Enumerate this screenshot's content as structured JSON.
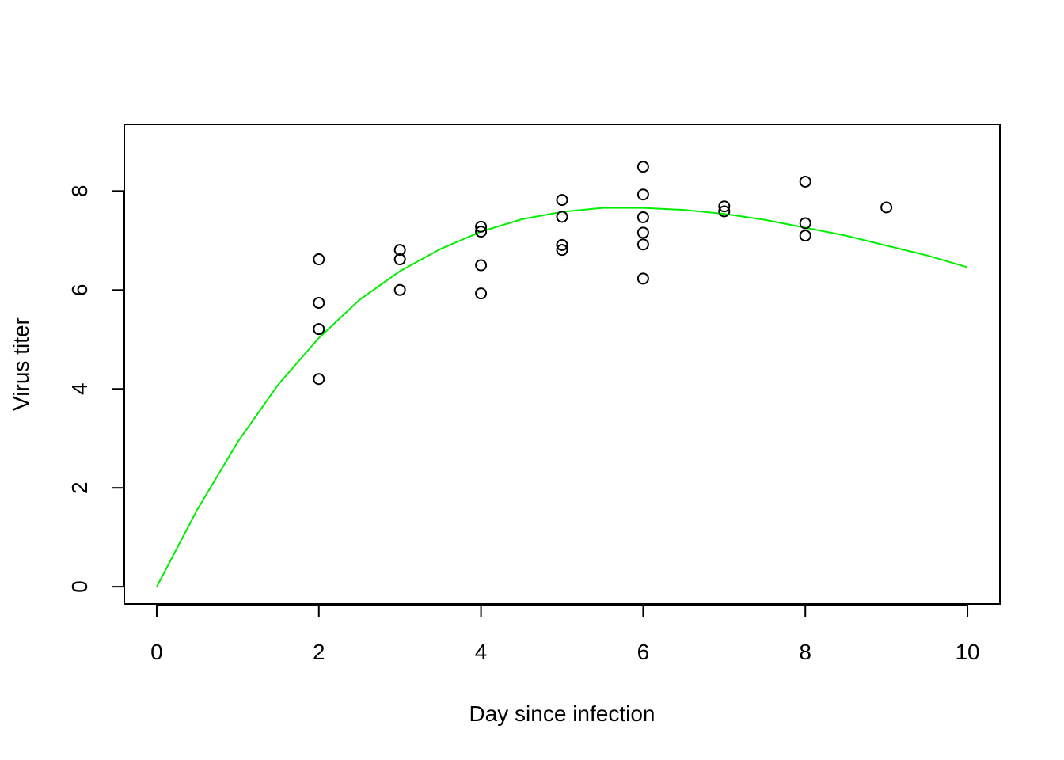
{
  "chart_data": {
    "type": "scatter",
    "title": "",
    "xlabel": "Day since infection",
    "ylabel": "Virus titer",
    "xlim": [
      -0.4,
      10.4
    ],
    "ylim": [
      -0.35,
      9.35
    ],
    "x_ticks": [
      0,
      2,
      4,
      6,
      8,
      10
    ],
    "x_tick_labels": [
      "0",
      "2",
      "4",
      "6",
      "8",
      "10"
    ],
    "y_ticks": [
      0,
      2,
      4,
      6,
      8
    ],
    "y_tick_labels": [
      "0",
      "2",
      "4",
      "6",
      "8"
    ],
    "grid": false,
    "legend": "none",
    "colors": {
      "points": "#000000",
      "fit_line": "#00ee00",
      "frame": "#000000",
      "background": "#ffffff"
    },
    "points": [
      [
        2,
        6.62
      ],
      [
        2,
        5.74
      ],
      [
        2,
        5.21
      ],
      [
        2,
        4.2
      ],
      [
        3,
        6.81
      ],
      [
        3,
        6.62
      ],
      [
        3,
        6.0
      ],
      [
        4,
        7.28
      ],
      [
        4,
        7.18
      ],
      [
        4,
        6.5
      ],
      [
        4,
        5.93
      ],
      [
        5,
        7.82
      ],
      [
        5,
        7.48
      ],
      [
        5,
        6.91
      ],
      [
        5,
        6.81
      ],
      [
        6,
        8.49
      ],
      [
        6,
        7.93
      ],
      [
        6,
        7.47
      ],
      [
        6,
        7.16
      ],
      [
        6,
        6.92
      ],
      [
        6,
        6.23
      ],
      [
        7,
        7.69
      ],
      [
        7,
        7.59
      ],
      [
        8,
        8.19
      ],
      [
        8,
        7.35
      ],
      [
        8,
        7.1
      ],
      [
        9,
        7.67
      ]
    ],
    "fit_curve": {
      "x": [
        0,
        0.5,
        1,
        1.5,
        2,
        2.5,
        3,
        3.5,
        4,
        4.5,
        5,
        5.5,
        6,
        6.5,
        7,
        7.5,
        8,
        8.5,
        9,
        9.5,
        10
      ],
      "y": [
        0.0,
        1.56,
        2.93,
        4.09,
        5.03,
        5.8,
        6.38,
        6.83,
        7.18,
        7.43,
        7.58,
        7.66,
        7.66,
        7.62,
        7.54,
        7.42,
        7.26,
        7.1,
        6.9,
        6.7,
        6.46
      ]
    }
  }
}
